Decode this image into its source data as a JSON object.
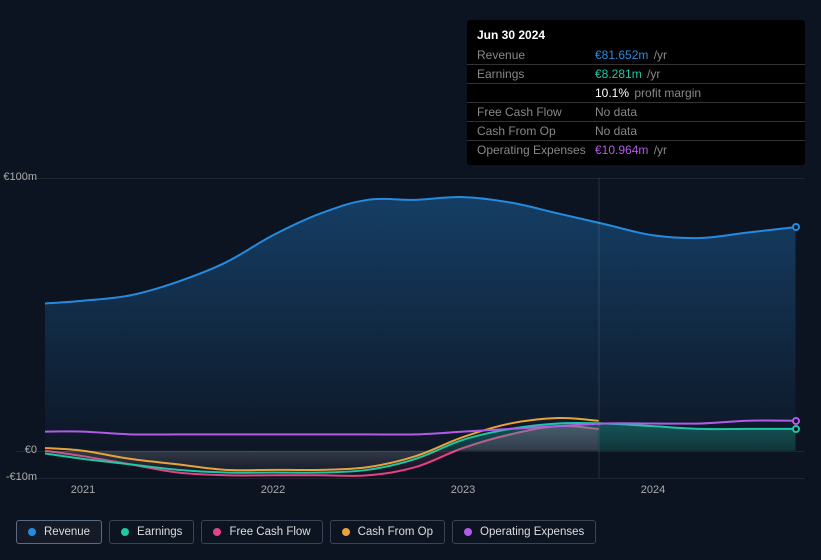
{
  "tooltip": {
    "date": "Jun 30 2024",
    "rows": [
      {
        "label": "Revenue",
        "value": "€81.652m",
        "unit": "/yr",
        "color": "#248be0"
      },
      {
        "label": "Earnings",
        "value": "€8.281m",
        "unit": "/yr",
        "color": "#1fc7a3"
      },
      {
        "label": "",
        "value": "10.1%",
        "unit": "profit margin",
        "color": "#ffffff"
      },
      {
        "label": "Free Cash Flow",
        "value": "No data",
        "unit": "",
        "color": "#888888"
      },
      {
        "label": "Cash From Op",
        "value": "No data",
        "unit": "",
        "color": "#888888"
      },
      {
        "label": "Operating Expenses",
        "value": "€10.964m",
        "unit": "/yr",
        "color": "#b25be7"
      }
    ]
  },
  "chart": {
    "ylim": [
      -10,
      100
    ],
    "y_ticks": [
      {
        "v": 100,
        "label": "€100m"
      },
      {
        "v": 0,
        "label": "€0"
      },
      {
        "v": -10,
        "label": "-€10m"
      }
    ],
    "xlim": [
      2020.8,
      2024.8
    ],
    "x_ticks": [
      {
        "v": 2021,
        "label": "2021"
      },
      {
        "v": 2022,
        "label": "2022"
      },
      {
        "v": 2023,
        "label": "2023"
      },
      {
        "v": 2024,
        "label": "2024"
      }
    ],
    "vline_at": 2023.71,
    "background": "#0d1421",
    "grid_color": "rgba(255,255,255,0.08)",
    "series": {
      "revenue": {
        "label": "Revenue",
        "color": "#248be0",
        "fill": true,
        "end_dot": true,
        "data": [
          [
            2020.8,
            54
          ],
          [
            2021.0,
            55
          ],
          [
            2021.25,
            57
          ],
          [
            2021.5,
            62
          ],
          [
            2021.75,
            69
          ],
          [
            2022.0,
            79
          ],
          [
            2022.25,
            87
          ],
          [
            2022.5,
            92
          ],
          [
            2022.75,
            92
          ],
          [
            2023.0,
            93
          ],
          [
            2023.25,
            91
          ],
          [
            2023.5,
            87
          ],
          [
            2023.75,
            83
          ],
          [
            2024.0,
            79
          ],
          [
            2024.25,
            78
          ],
          [
            2024.5,
            80
          ],
          [
            2024.75,
            82
          ]
        ]
      },
      "earnings": {
        "label": "Earnings",
        "color": "#1fc7a3",
        "fill": true,
        "end_dot": true,
        "data": [
          [
            2020.8,
            -1
          ],
          [
            2021.0,
            -3
          ],
          [
            2021.25,
            -5
          ],
          [
            2021.5,
            -7
          ],
          [
            2021.75,
            -8
          ],
          [
            2022.0,
            -8
          ],
          [
            2022.25,
            -8
          ],
          [
            2022.5,
            -7
          ],
          [
            2022.75,
            -3
          ],
          [
            2023.0,
            4
          ],
          [
            2023.25,
            8
          ],
          [
            2023.5,
            10
          ],
          [
            2023.75,
            10
          ],
          [
            2024.0,
            9
          ],
          [
            2024.25,
            8
          ],
          [
            2024.5,
            8
          ],
          [
            2024.75,
            8
          ]
        ]
      },
      "fcf": {
        "label": "Free Cash Flow",
        "color": "#e24385",
        "fill": true,
        "data": [
          [
            2020.8,
            0
          ],
          [
            2021.0,
            -2
          ],
          [
            2021.25,
            -5
          ],
          [
            2021.5,
            -8
          ],
          [
            2021.75,
            -9
          ],
          [
            2022.0,
            -9
          ],
          [
            2022.25,
            -9
          ],
          [
            2022.5,
            -9
          ],
          [
            2022.75,
            -6
          ],
          [
            2023.0,
            1
          ],
          [
            2023.25,
            6
          ],
          [
            2023.5,
            9
          ],
          [
            2023.71,
            8
          ]
        ]
      },
      "cfo": {
        "label": "Cash From Op",
        "color": "#e8a23c",
        "fill": false,
        "data": [
          [
            2020.8,
            1
          ],
          [
            2021.0,
            0
          ],
          [
            2021.25,
            -3
          ],
          [
            2021.5,
            -5
          ],
          [
            2021.75,
            -7
          ],
          [
            2022.0,
            -7
          ],
          [
            2022.25,
            -7
          ],
          [
            2022.5,
            -6
          ],
          [
            2022.75,
            -2
          ],
          [
            2023.0,
            5
          ],
          [
            2023.25,
            10
          ],
          [
            2023.5,
            12
          ],
          [
            2023.71,
            11
          ]
        ]
      },
      "opex": {
        "label": "Operating Expenses",
        "color": "#b25be7",
        "fill": false,
        "end_dot": true,
        "data": [
          [
            2020.8,
            7
          ],
          [
            2021.0,
            7
          ],
          [
            2021.25,
            6
          ],
          [
            2021.5,
            6
          ],
          [
            2021.75,
            6
          ],
          [
            2022.0,
            6
          ],
          [
            2022.25,
            6
          ],
          [
            2022.5,
            6
          ],
          [
            2022.75,
            6
          ],
          [
            2023.0,
            7
          ],
          [
            2023.25,
            8
          ],
          [
            2023.5,
            9
          ],
          [
            2023.75,
            10
          ],
          [
            2024.0,
            10
          ],
          [
            2024.25,
            10
          ],
          [
            2024.5,
            11
          ],
          [
            2024.75,
            11
          ]
        ]
      }
    },
    "legend_order": [
      "revenue",
      "earnings",
      "fcf",
      "cfo",
      "opex"
    ],
    "active_legend": "revenue"
  }
}
